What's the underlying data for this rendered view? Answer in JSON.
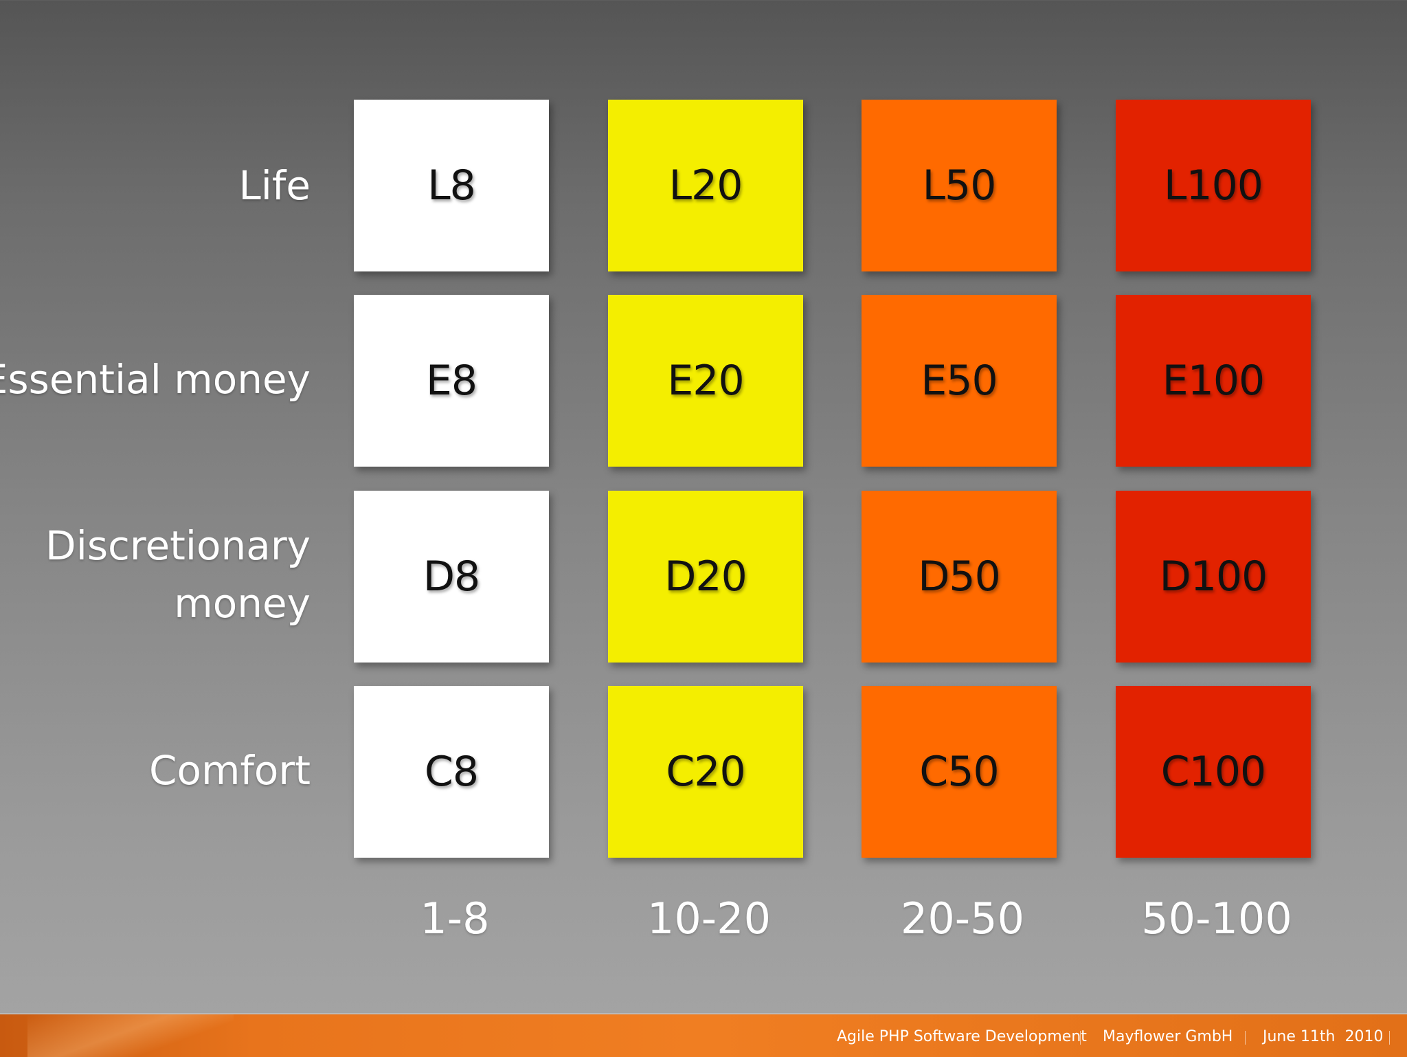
{
  "row_labels": {
    "life": "Life",
    "essential": "Essential money",
    "discretionary_line1": "Discretionary",
    "discretionary_line2": "money",
    "comfort": "Comfort"
  },
  "column_labels": [
    "1-8",
    "10-20",
    "20-50",
    "50-100"
  ],
  "cells": {
    "life": [
      "L8",
      "L20",
      "L50",
      "L100"
    ],
    "essential": [
      "E8",
      "E20",
      "E50",
      "E100"
    ],
    "discretionary": [
      "D8",
      "D20",
      "D50",
      "D100"
    ],
    "comfort": [
      "C8",
      "C20",
      "C50",
      "C100"
    ]
  },
  "column_colors": [
    "#ffffff",
    "#f4ee00",
    "#ff6a00",
    "#e22200"
  ],
  "footer": {
    "presentation": "Agile PHP Software Development",
    "company": "Mayflower GmbH",
    "date": "June 11th  2010"
  }
}
